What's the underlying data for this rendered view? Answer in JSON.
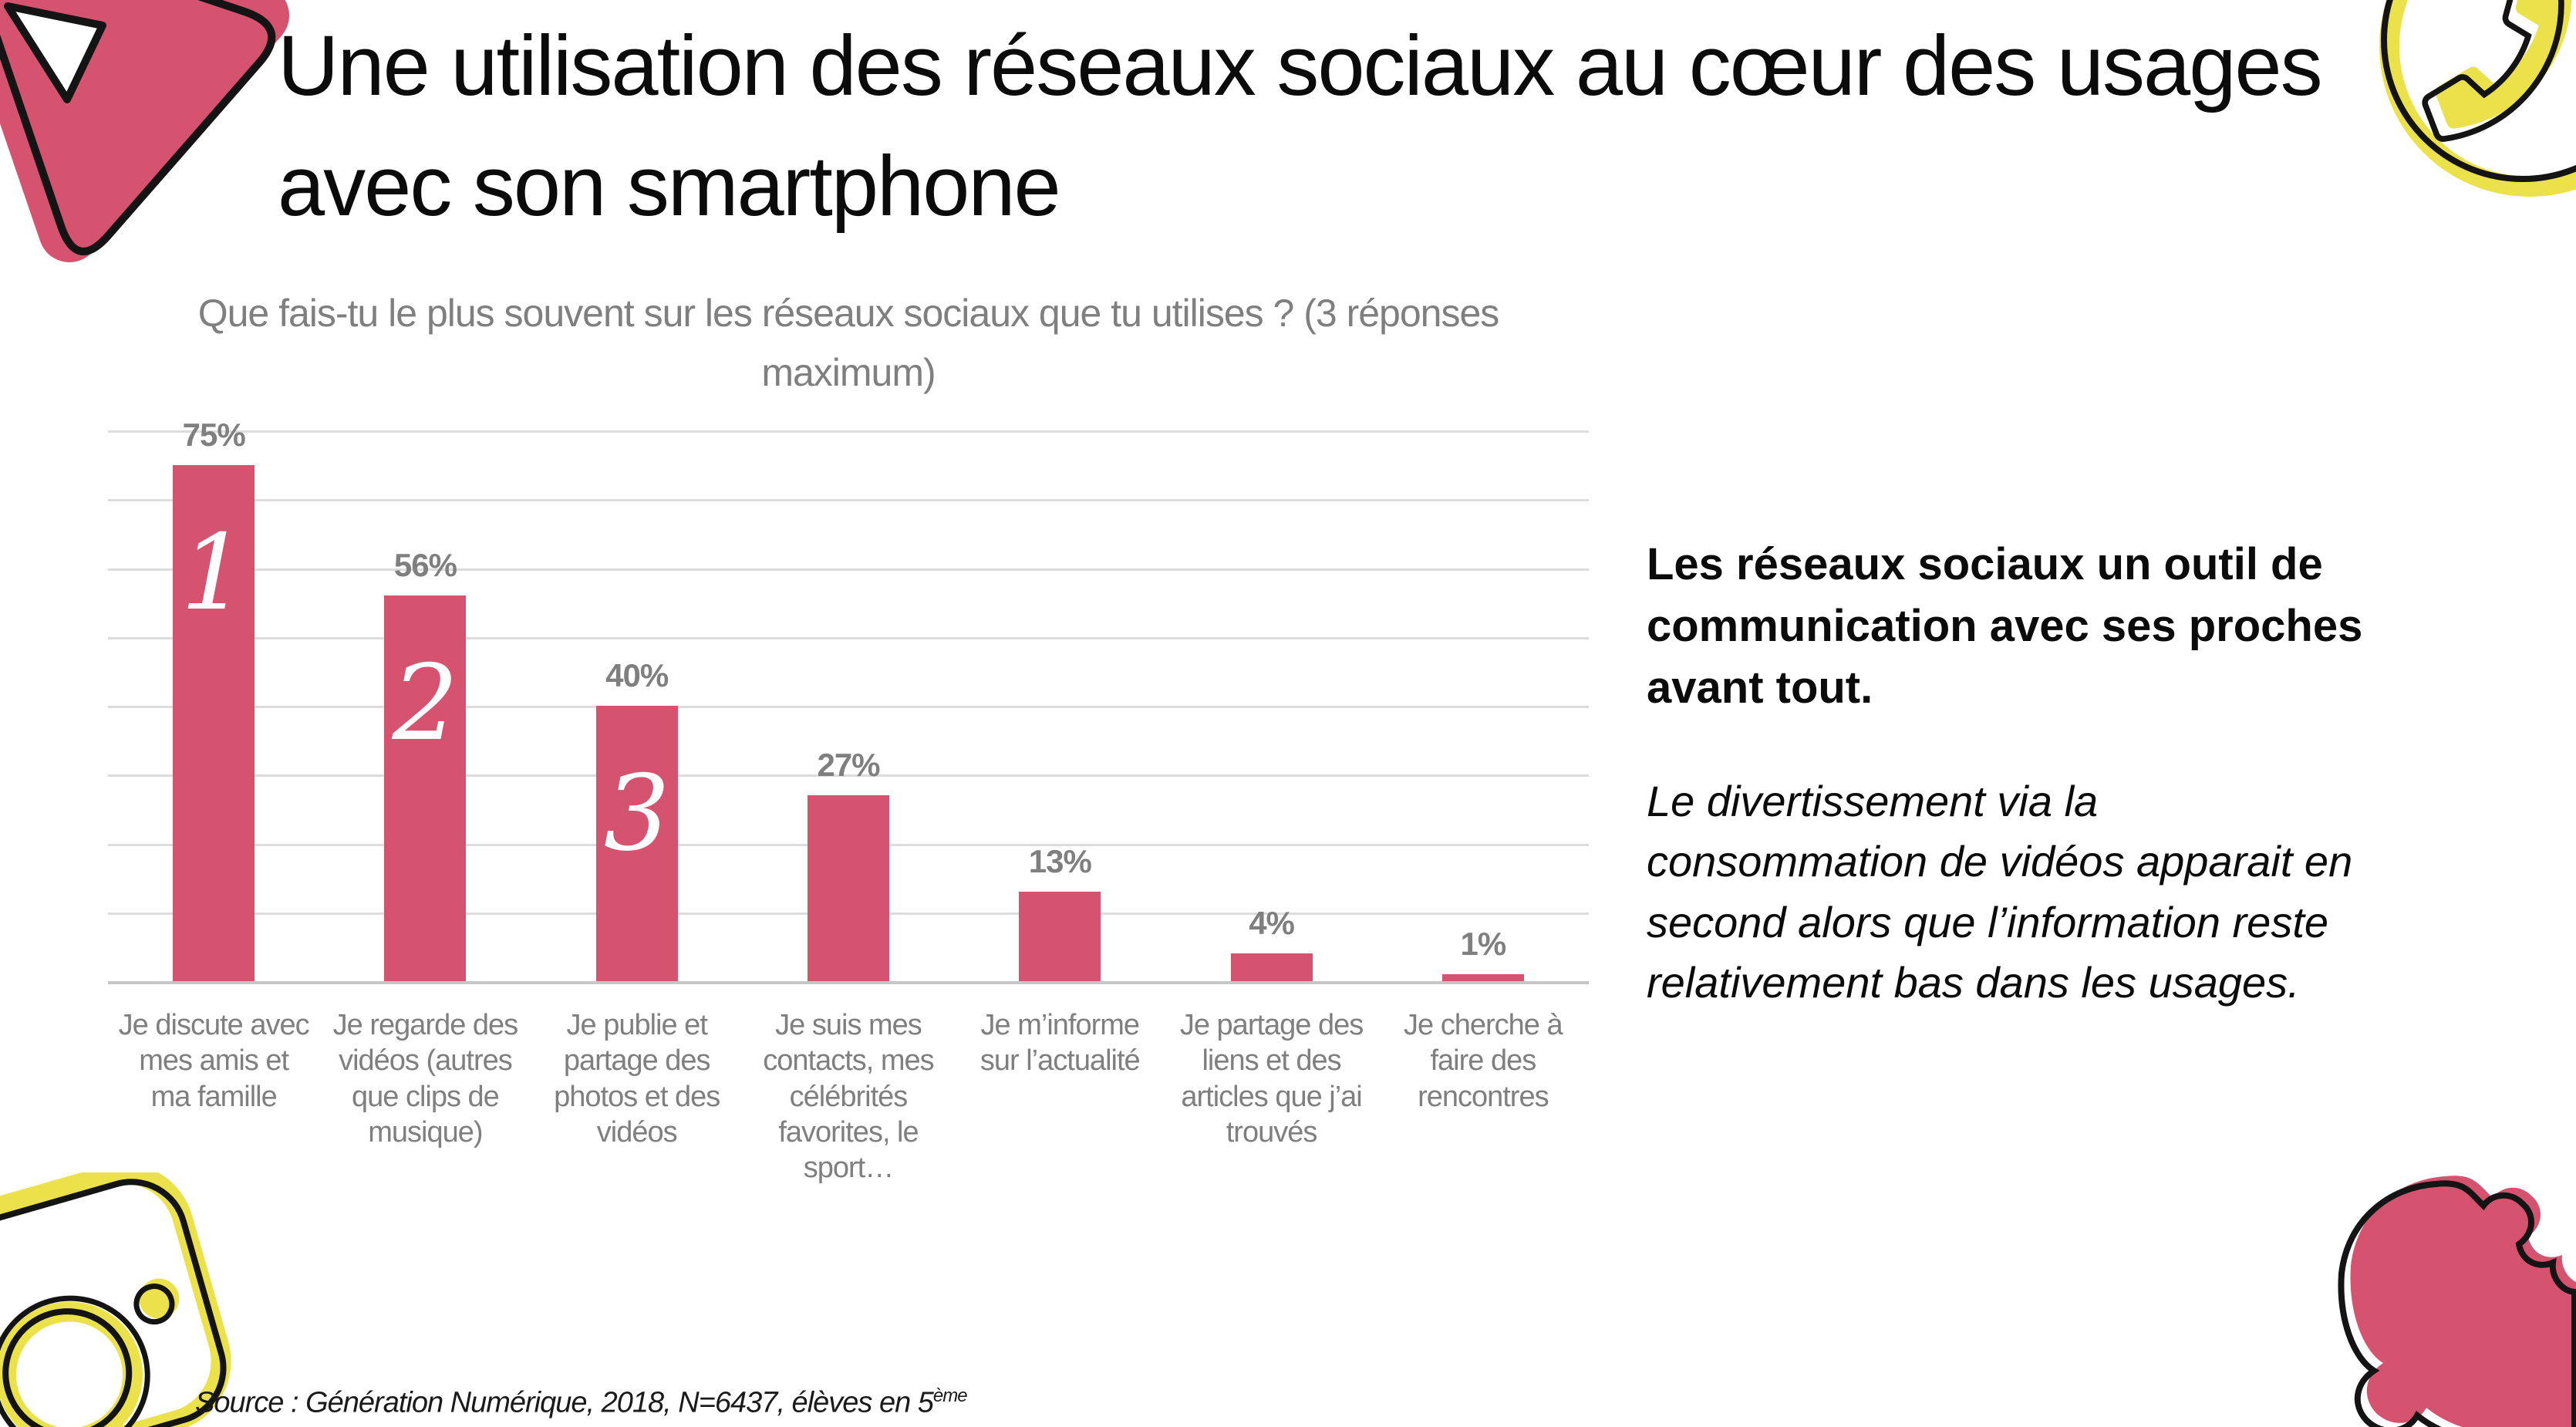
{
  "slide": {
    "title": "Une utilisation des réseaux sociaux au cœur des usages avec son smartphone",
    "source": {
      "text": "Source : Génération Numérique, 2018, N=6437, élèves en 5",
      "superscript": "ème"
    }
  },
  "commentary": {
    "heading_bold": "Les réseaux sociaux un outil de communication avec ses proches avant tout.",
    "body_italic": "Le divertissement via la consommation de vidéos apparait en second alors que l’information reste relativement bas dans les usages."
  },
  "chart_data": {
    "type": "bar",
    "title": "Que fais-tu le plus souvent sur les réseaux sociaux que tu utilises ? (3 réponses maximum)",
    "categories": [
      "Je discute avec mes amis et ma famille",
      "Je regarde des vidéos (autres que clips de musique)",
      "Je publie et partage des photos et des vidéos",
      "Je suis mes contacts, mes célébrités favorites, le sport…",
      "Je m’informe sur l’actualité",
      "Je partage des liens et des articles que j’ai trouvés",
      "Je cherche à faire des rencontres"
    ],
    "values": [
      75,
      56,
      40,
      27,
      13,
      4,
      1
    ],
    "value_labels": [
      "75%",
      "56%",
      "40%",
      "27%",
      "13%",
      "4%",
      "1%"
    ],
    "rank_annotations": [
      "1",
      "2",
      "3"
    ],
    "xlabel": "",
    "ylabel": "",
    "ylim": [
      0,
      80
    ],
    "gridline_step": 10,
    "grid": true,
    "legend": "none",
    "bar_color": "#d5536f",
    "value_label_color": "#7f7f7f",
    "category_label_color": "#7f7f7f",
    "gridline_color": "#dcdcdc"
  },
  "icons": {
    "top_left": "play-icon",
    "top_right": "phone-icon",
    "bottom_left": "instagram-camera-icon",
    "bottom_right": "like-blob-icon"
  },
  "colors": {
    "accent_pink": "#d5536f",
    "accent_yellow": "#ebe14a",
    "outline_black": "#141414",
    "text_gray": "#7f7f7f"
  }
}
